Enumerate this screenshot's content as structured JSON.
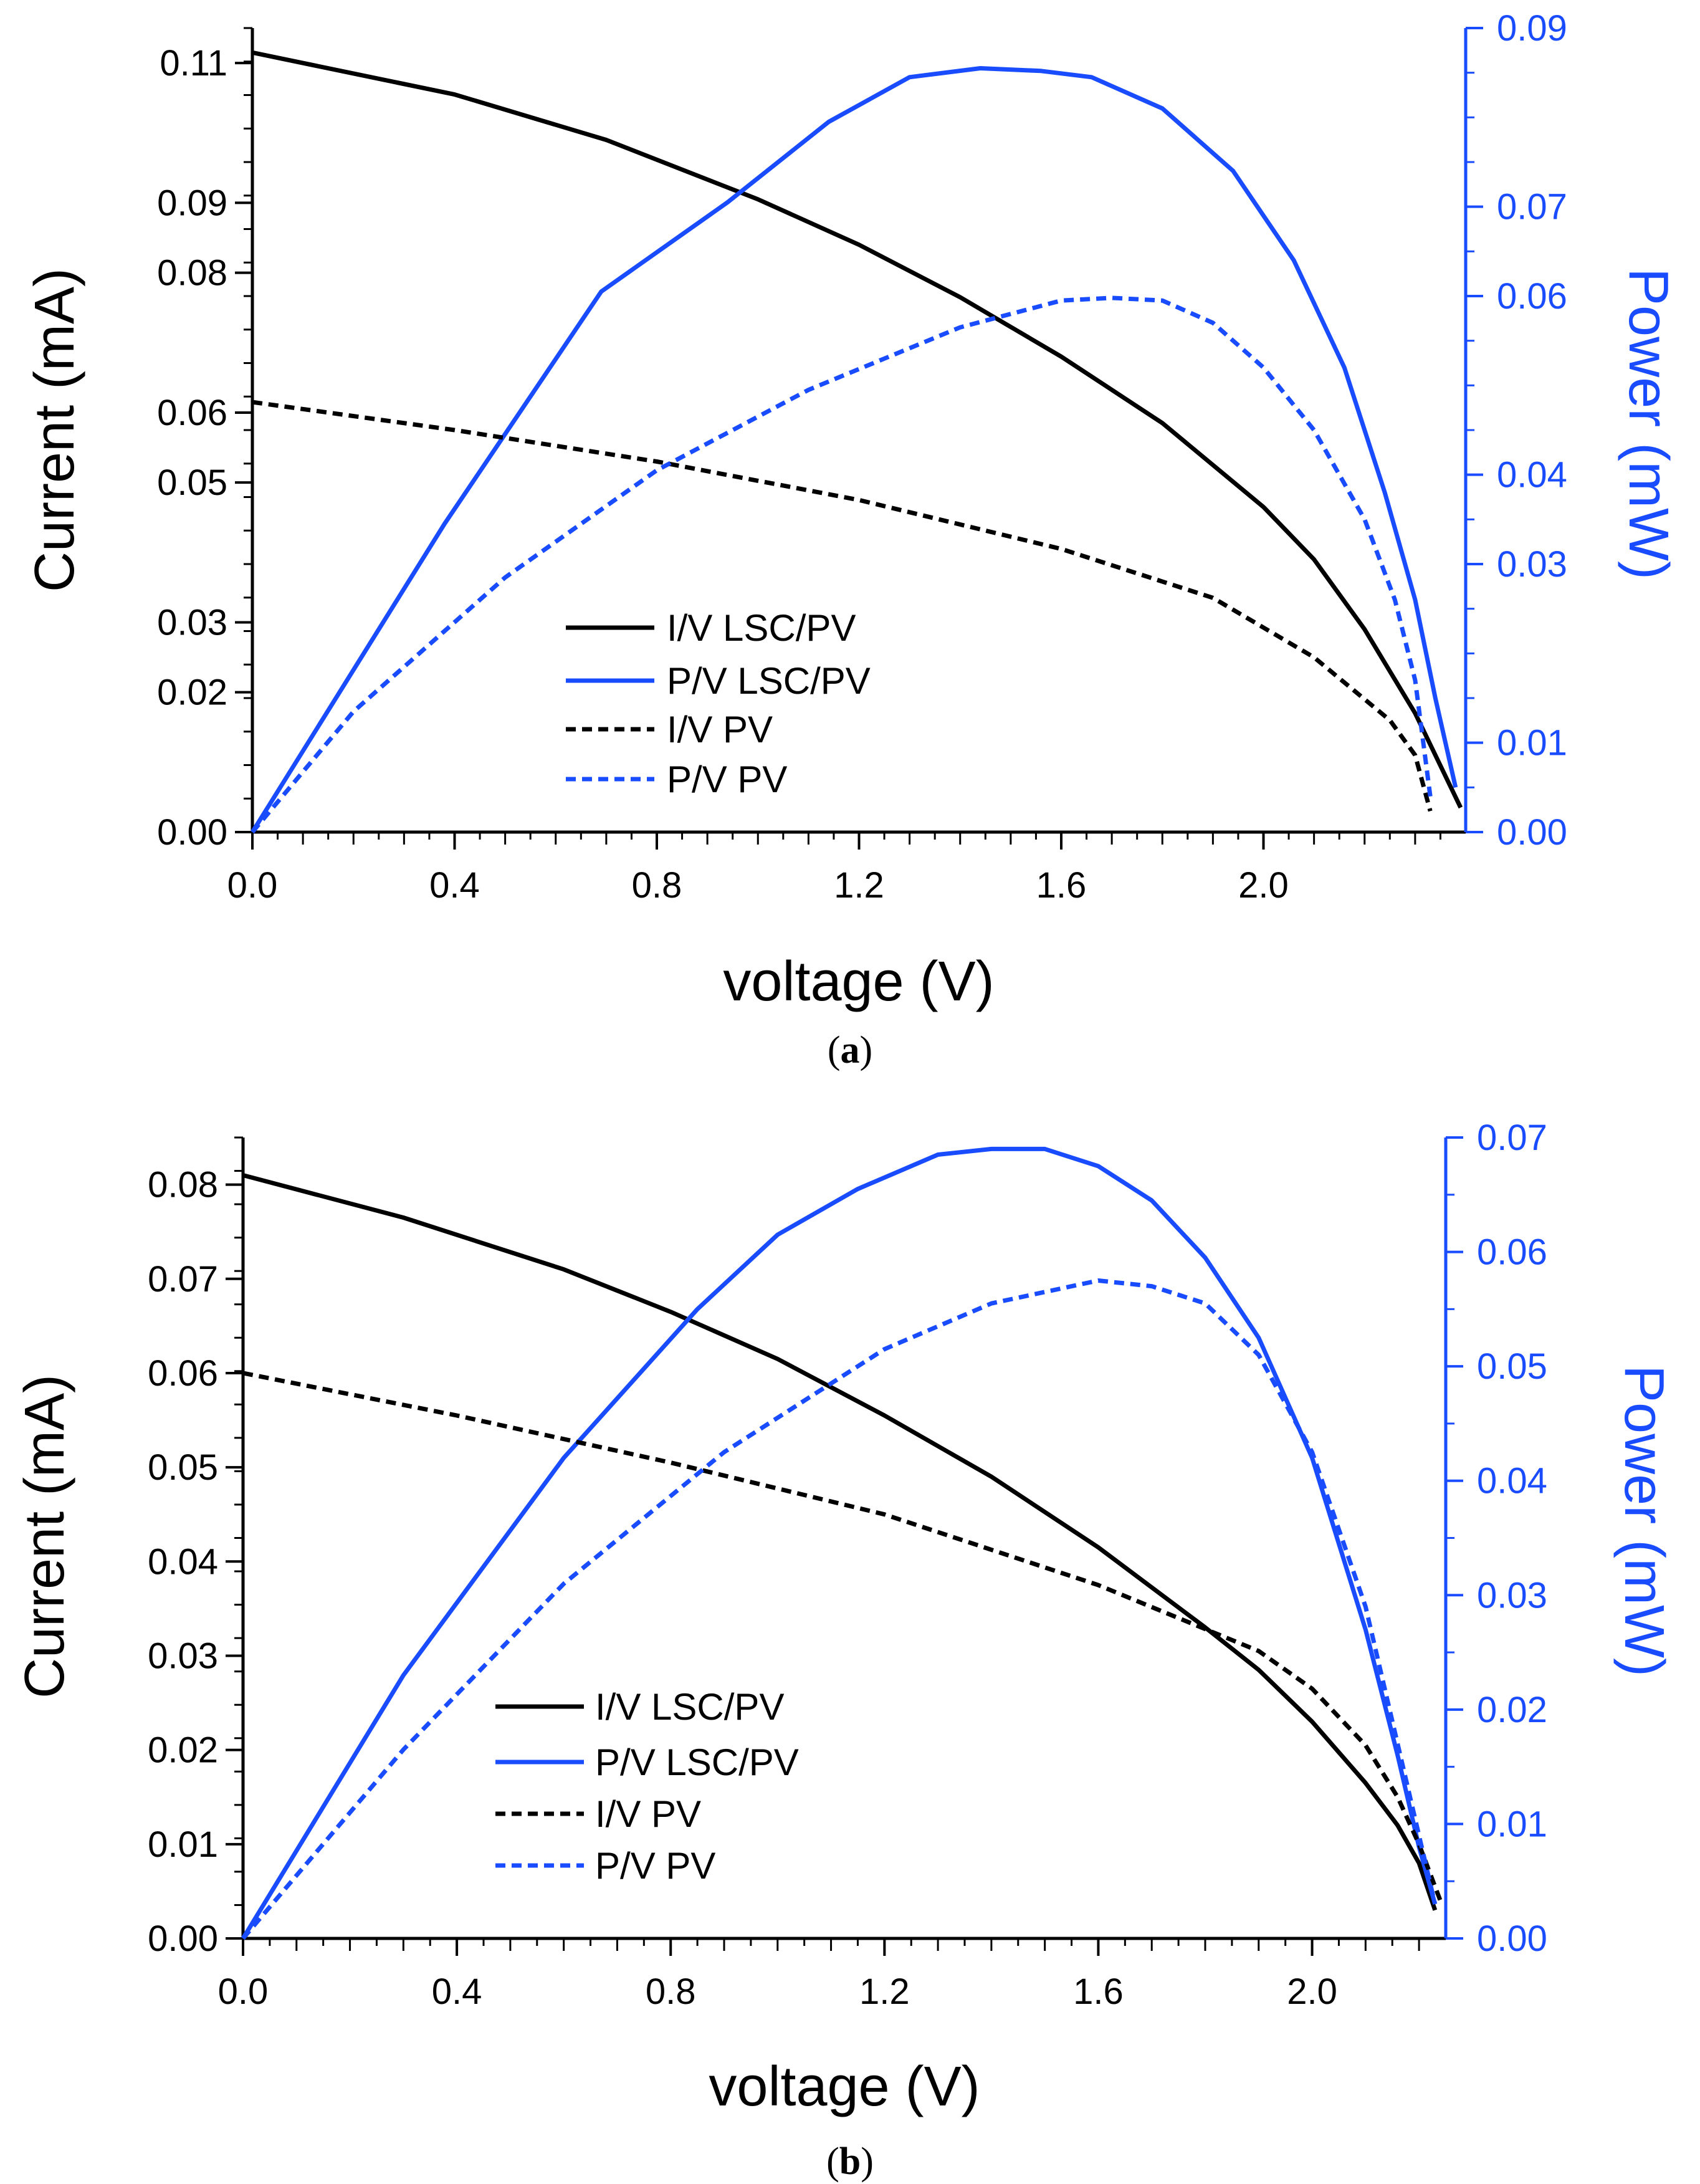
{
  "chart_data": [
    {
      "type": "line",
      "panel_label": [
        "(",
        "a",
        ")"
      ],
      "xlabel": "voltage (V)",
      "ylabel_left": "Current (mA)",
      "ylabel_right": "Power (mW)",
      "xlim": [
        0,
        2.4
      ],
      "ylim_left": [
        0,
        0.115
      ],
      "ylim_right": [
        0,
        0.09
      ],
      "x_ticks": [
        "0.0",
        "0.4",
        "0.8",
        "1.2",
        "1.6",
        "2.0"
      ],
      "y_left_ticks": [
        "0.00",
        "0.02",
        "0.03",
        "0.05",
        "0.06",
        "0.08",
        "0.09",
        "0.11"
      ],
      "y_right_ticks": [
        "0.00",
        "0.01",
        "0.03",
        "0.04",
        "0.06",
        "0.07",
        "0.09"
      ],
      "legend": [
        "I/V LSC/PV",
        "P/V LSC/PV",
        "I/V PV",
        "P/V PV"
      ],
      "colors": {
        "current": "#000000",
        "power": "#1a4cff"
      },
      "series": [
        {
          "name": "I/V LSC/PV",
          "axis": "left",
          "dash": false,
          "color": "#000000",
          "x": [
            0.0,
            0.4,
            0.7,
            1.0,
            1.2,
            1.4,
            1.6,
            1.8,
            2.0,
            2.1,
            2.2,
            2.3,
            2.39
          ],
          "y": [
            0.1115,
            0.1055,
            0.099,
            0.0905,
            0.084,
            0.0765,
            0.068,
            0.0585,
            0.0465,
            0.039,
            0.029,
            0.017,
            0.0035
          ]
        },
        {
          "name": "P/V LSC/PV",
          "axis": "right",
          "dash": false,
          "color": "#1a4cff",
          "x": [
            0.0,
            0.38,
            0.69,
            0.94,
            1.14,
            1.3,
            1.44,
            1.56,
            1.66,
            1.8,
            1.94,
            2.06,
            2.16,
            2.24,
            2.3,
            2.34,
            2.38
          ],
          "y": [
            0.0,
            0.0345,
            0.0605,
            0.0705,
            0.0795,
            0.0845,
            0.0855,
            0.0852,
            0.0845,
            0.081,
            0.074,
            0.064,
            0.052,
            0.038,
            0.026,
            0.015,
            0.005
          ]
        },
        {
          "name": "I/V PV",
          "axis": "left",
          "dash": true,
          "color": "#000000",
          "x": [
            0.0,
            0.4,
            0.8,
            1.2,
            1.6,
            1.9,
            2.1,
            2.25,
            2.3,
            2.33
          ],
          "y": [
            0.0615,
            0.0575,
            0.053,
            0.0475,
            0.0405,
            0.0335,
            0.025,
            0.016,
            0.011,
            0.003
          ]
        },
        {
          "name": "P/V PV",
          "axis": "right",
          "dash": true,
          "color": "#1a4cff",
          "x": [
            0.0,
            0.2,
            0.5,
            0.8,
            1.1,
            1.4,
            1.6,
            1.7,
            1.8,
            1.9,
            2.0,
            2.1,
            2.2,
            2.26,
            2.3,
            2.33
          ],
          "y": [
            0.0,
            0.0135,
            0.0285,
            0.0405,
            0.0495,
            0.0565,
            0.0595,
            0.0598,
            0.0595,
            0.057,
            0.052,
            0.045,
            0.035,
            0.026,
            0.017,
            0.004
          ]
        }
      ]
    },
    {
      "type": "line",
      "panel_label": [
        "(",
        "b",
        ")"
      ],
      "xlabel": "voltage (V)",
      "ylabel_left": "Current (mA)",
      "ylabel_right": "Power (mW)",
      "xlim": [
        0,
        2.25
      ],
      "ylim_left": [
        0,
        0.085
      ],
      "ylim_right": [
        0,
        0.07
      ],
      "x_ticks": [
        "0.0",
        "0.4",
        "0.8",
        "1.2",
        "1.6",
        "2.0"
      ],
      "y_left_ticks": [
        "0.00",
        "0.01",
        "0.02",
        "0.03",
        "0.04",
        "0.05",
        "0.06",
        "0.07",
        "0.08"
      ],
      "y_right_ticks": [
        "0.00",
        "0.01",
        "0.02",
        "0.03",
        "0.04",
        "0.05",
        "0.06",
        "0.07"
      ],
      "legend": [
        "I/V LSC/PV",
        "P/V LSC/PV",
        "I/V PV",
        "P/V PV"
      ],
      "colors": {
        "current": "#000000",
        "power": "#1a4cff"
      },
      "series": [
        {
          "name": "I/V LSC/PV",
          "axis": "left",
          "dash": false,
          "color": "#000000",
          "x": [
            0.0,
            0.3,
            0.6,
            0.8,
            1.0,
            1.2,
            1.4,
            1.6,
            1.8,
            1.9,
            2.0,
            2.1,
            2.16,
            2.2,
            2.23
          ],
          "y": [
            0.081,
            0.0765,
            0.071,
            0.0665,
            0.0615,
            0.0555,
            0.049,
            0.0415,
            0.033,
            0.0285,
            0.023,
            0.0165,
            0.012,
            0.008,
            0.003
          ]
        },
        {
          "name": "P/V LSC/PV",
          "axis": "right",
          "dash": false,
          "color": "#1a4cff",
          "x": [
            0.0,
            0.3,
            0.6,
            0.85,
            1.0,
            1.15,
            1.3,
            1.4,
            1.5,
            1.6,
            1.7,
            1.8,
            1.9,
            2.0,
            2.1,
            2.16,
            2.2,
            2.23
          ],
          "y": [
            0.0,
            0.023,
            0.042,
            0.055,
            0.0615,
            0.0655,
            0.0685,
            0.069,
            0.069,
            0.0675,
            0.0645,
            0.0595,
            0.0525,
            0.042,
            0.027,
            0.016,
            0.008,
            0.003
          ]
        },
        {
          "name": "I/V PV",
          "axis": "left",
          "dash": true,
          "color": "#000000",
          "x": [
            0.0,
            0.4,
            0.8,
            1.2,
            1.6,
            1.9,
            2.0,
            2.1,
            2.16,
            2.2,
            2.24
          ],
          "y": [
            0.06,
            0.0555,
            0.0505,
            0.045,
            0.0375,
            0.0305,
            0.0265,
            0.0205,
            0.015,
            0.01,
            0.004
          ]
        },
        {
          "name": "P/V PV",
          "axis": "right",
          "dash": true,
          "color": "#1a4cff",
          "x": [
            0.0,
            0.3,
            0.6,
            0.9,
            1.2,
            1.4,
            1.6,
            1.7,
            1.8,
            1.9,
            2.0,
            2.1,
            2.16,
            2.2,
            2.23
          ],
          "y": [
            0.0,
            0.0165,
            0.031,
            0.0425,
            0.0515,
            0.0555,
            0.0575,
            0.057,
            0.0555,
            0.051,
            0.0425,
            0.029,
            0.017,
            0.009,
            0.003
          ]
        }
      ]
    }
  ]
}
